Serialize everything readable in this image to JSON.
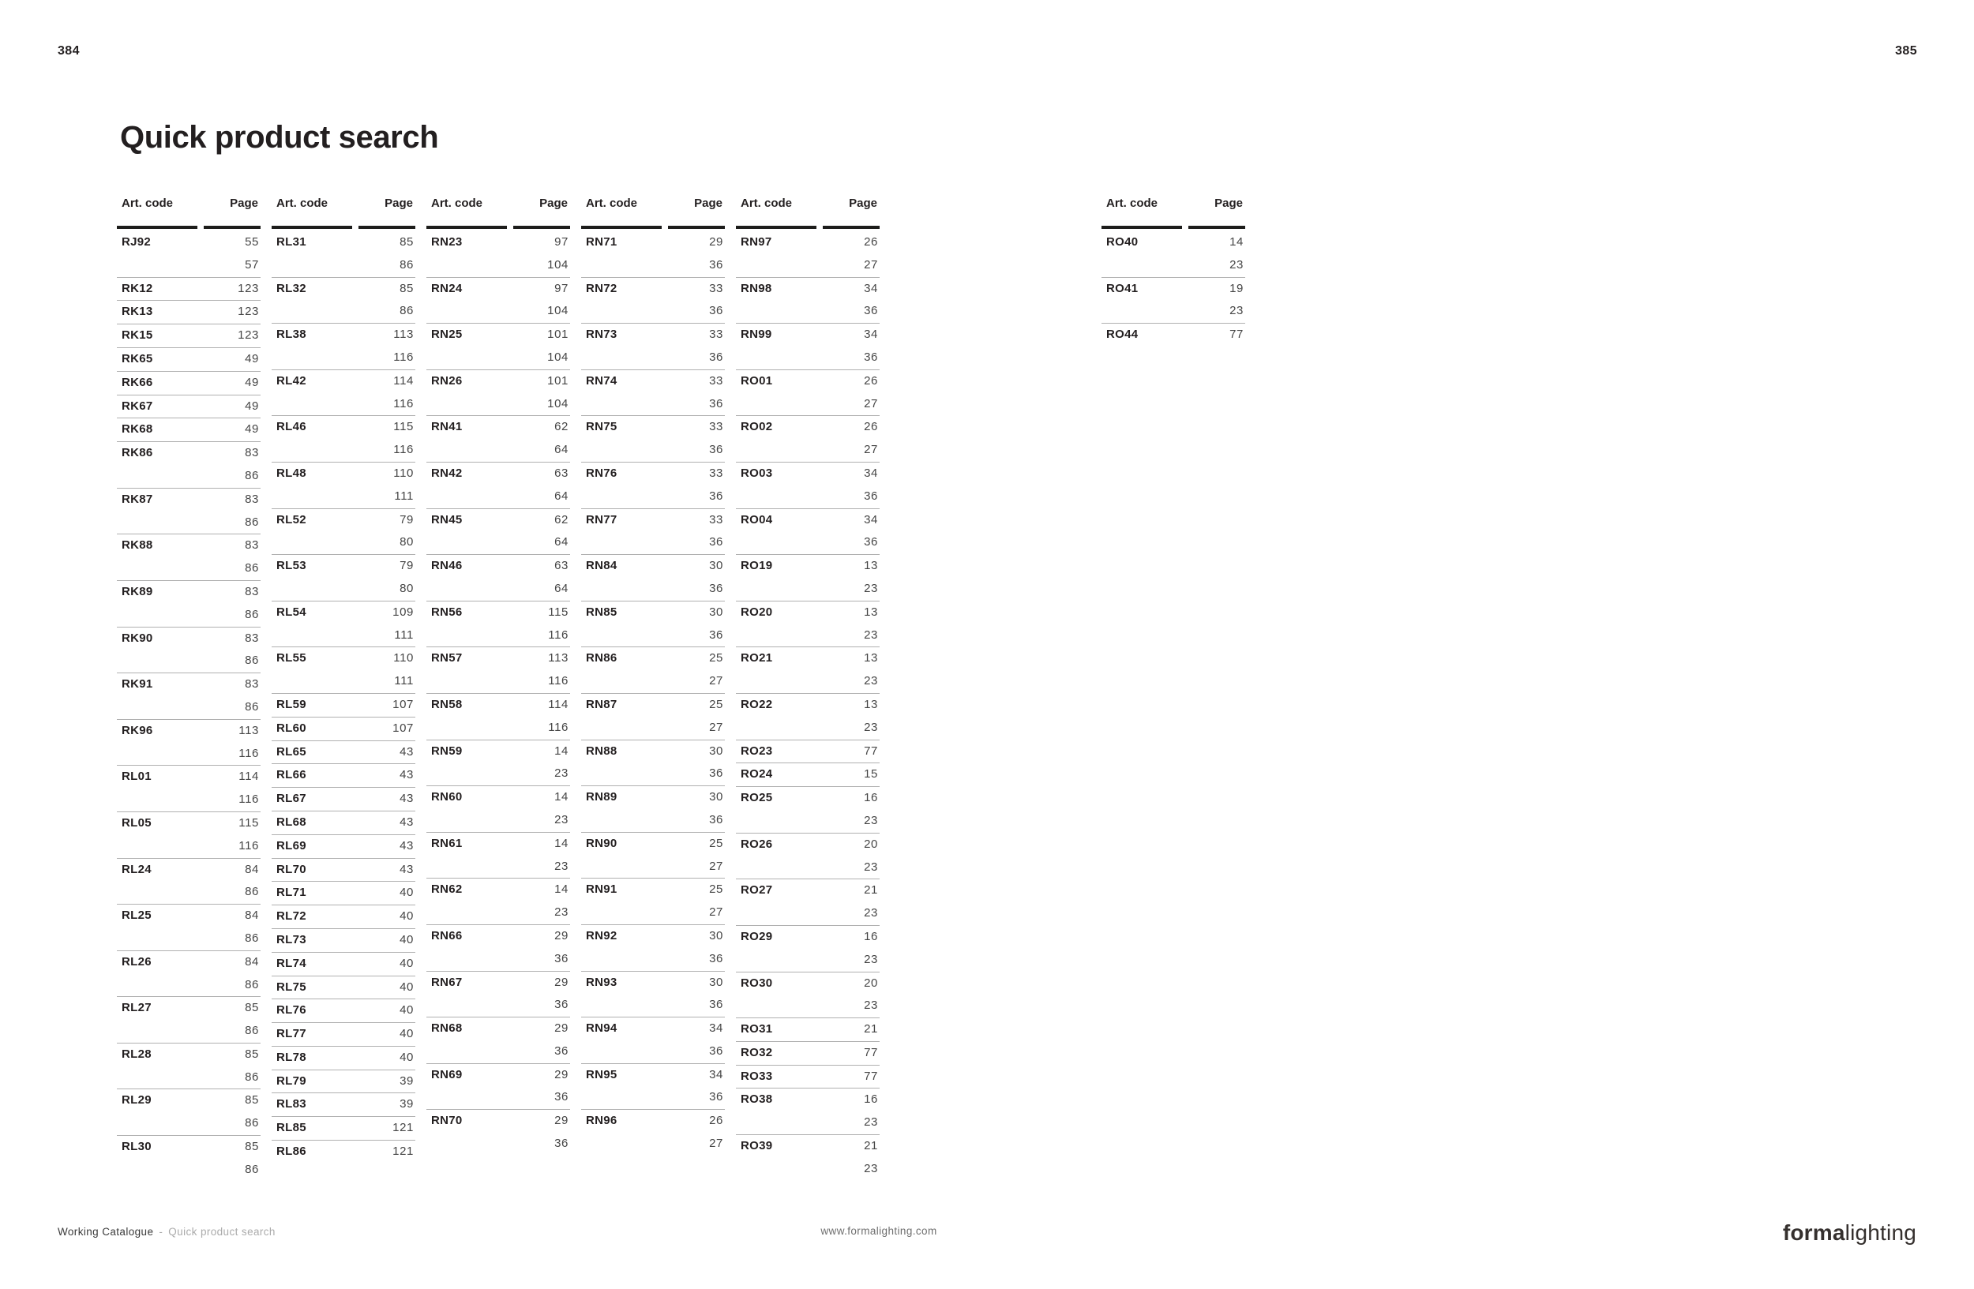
{
  "page": {
    "left_folio": "384",
    "right_folio": "385",
    "title": "Quick product search"
  },
  "table": {
    "col_header_code": "Art. code",
    "col_header_page": "Page",
    "columns": [
      {
        "entries": [
          {
            "code": "RJ92",
            "pages": [
              "55",
              "57"
            ]
          },
          {
            "code": "RK12",
            "pages": [
              "123"
            ]
          },
          {
            "code": "RK13",
            "pages": [
              "123"
            ]
          },
          {
            "code": "RK15",
            "pages": [
              "123"
            ]
          },
          {
            "code": "RK65",
            "pages": [
              "49"
            ]
          },
          {
            "code": "RK66",
            "pages": [
              "49"
            ]
          },
          {
            "code": "RK67",
            "pages": [
              "49"
            ]
          },
          {
            "code": "RK68",
            "pages": [
              "49"
            ]
          },
          {
            "code": "RK86",
            "pages": [
              "83",
              "86"
            ]
          },
          {
            "code": "RK87",
            "pages": [
              "83",
              "86"
            ]
          },
          {
            "code": "RK88",
            "pages": [
              "83",
              "86"
            ]
          },
          {
            "code": "RK89",
            "pages": [
              "83",
              "86"
            ]
          },
          {
            "code": "RK90",
            "pages": [
              "83",
              "86"
            ]
          },
          {
            "code": "RK91",
            "pages": [
              "83",
              "86"
            ]
          },
          {
            "code": "RK96",
            "pages": [
              "113",
              "116"
            ]
          },
          {
            "code": "RL01",
            "pages": [
              "114",
              "116"
            ]
          },
          {
            "code": "RL05",
            "pages": [
              "115",
              "116"
            ]
          },
          {
            "code": "RL24",
            "pages": [
              "84",
              "86"
            ]
          },
          {
            "code": "RL25",
            "pages": [
              "84",
              "86"
            ]
          },
          {
            "code": "RL26",
            "pages": [
              "84",
              "86"
            ]
          },
          {
            "code": "RL27",
            "pages": [
              "85",
              "86"
            ]
          },
          {
            "code": "RL28",
            "pages": [
              "85",
              "86"
            ]
          },
          {
            "code": "RL29",
            "pages": [
              "85",
              "86"
            ]
          },
          {
            "code": "RL30",
            "pages": [
              "85",
              "86"
            ]
          }
        ]
      },
      {
        "entries": [
          {
            "code": "RL31",
            "pages": [
              "85",
              "86"
            ]
          },
          {
            "code": "RL32",
            "pages": [
              "85",
              "86"
            ]
          },
          {
            "code": "RL38",
            "pages": [
              "113",
              "116"
            ]
          },
          {
            "code": "RL42",
            "pages": [
              "114",
              "116"
            ]
          },
          {
            "code": "RL46",
            "pages": [
              "115",
              "116"
            ]
          },
          {
            "code": "RL48",
            "pages": [
              "110",
              "111"
            ]
          },
          {
            "code": "RL52",
            "pages": [
              "79",
              "80"
            ]
          },
          {
            "code": "RL53",
            "pages": [
              "79",
              "80"
            ]
          },
          {
            "code": "RL54",
            "pages": [
              "109",
              "111"
            ]
          },
          {
            "code": "RL55",
            "pages": [
              "110",
              "111"
            ]
          },
          {
            "code": "RL59",
            "pages": [
              "107"
            ]
          },
          {
            "code": "RL60",
            "pages": [
              "107"
            ]
          },
          {
            "code": "RL65",
            "pages": [
              "43"
            ]
          },
          {
            "code": "RL66",
            "pages": [
              "43"
            ]
          },
          {
            "code": "RL67",
            "pages": [
              "43"
            ]
          },
          {
            "code": "RL68",
            "pages": [
              "43"
            ]
          },
          {
            "code": "RL69",
            "pages": [
              "43"
            ]
          },
          {
            "code": "RL70",
            "pages": [
              "43"
            ]
          },
          {
            "code": "RL71",
            "pages": [
              "40"
            ]
          },
          {
            "code": "RL72",
            "pages": [
              "40"
            ]
          },
          {
            "code": "RL73",
            "pages": [
              "40"
            ]
          },
          {
            "code": "RL74",
            "pages": [
              "40"
            ]
          },
          {
            "code": "RL75",
            "pages": [
              "40"
            ]
          },
          {
            "code": "RL76",
            "pages": [
              "40"
            ]
          },
          {
            "code": "RL77",
            "pages": [
              "40"
            ]
          },
          {
            "code": "RL78",
            "pages": [
              "40"
            ]
          },
          {
            "code": "RL79",
            "pages": [
              "39"
            ]
          },
          {
            "code": "RL83",
            "pages": [
              "39"
            ]
          },
          {
            "code": "RL85",
            "pages": [
              "121"
            ]
          },
          {
            "code": "RL86",
            "pages": [
              "121"
            ]
          }
        ]
      },
      {
        "entries": [
          {
            "code": "RN23",
            "pages": [
              "97",
              "104"
            ]
          },
          {
            "code": "RN24",
            "pages": [
              "97",
              "104"
            ]
          },
          {
            "code": "RN25",
            "pages": [
              "101",
              "104"
            ]
          },
          {
            "code": "RN26",
            "pages": [
              "101",
              "104"
            ]
          },
          {
            "code": "RN41",
            "pages": [
              "62",
              "64"
            ]
          },
          {
            "code": "RN42",
            "pages": [
              "63",
              "64"
            ]
          },
          {
            "code": "RN45",
            "pages": [
              "62",
              "64"
            ]
          },
          {
            "code": "RN46",
            "pages": [
              "63",
              "64"
            ]
          },
          {
            "code": "RN56",
            "pages": [
              "115",
              "116"
            ]
          },
          {
            "code": "RN57",
            "pages": [
              "113",
              "116"
            ]
          },
          {
            "code": "RN58",
            "pages": [
              "114",
              "116"
            ]
          },
          {
            "code": "RN59",
            "pages": [
              "14",
              "23"
            ]
          },
          {
            "code": "RN60",
            "pages": [
              "14",
              "23"
            ]
          },
          {
            "code": "RN61",
            "pages": [
              "14",
              "23"
            ]
          },
          {
            "code": "RN62",
            "pages": [
              "14",
              "23"
            ]
          },
          {
            "code": "RN66",
            "pages": [
              "29",
              "36"
            ]
          },
          {
            "code": "RN67",
            "pages": [
              "29",
              "36"
            ]
          },
          {
            "code": "RN68",
            "pages": [
              "29",
              "36"
            ]
          },
          {
            "code": "RN69",
            "pages": [
              "29",
              "36"
            ]
          },
          {
            "code": "RN70",
            "pages": [
              "29",
              "36"
            ]
          }
        ]
      },
      {
        "entries": [
          {
            "code": "RN71",
            "pages": [
              "29",
              "36"
            ]
          },
          {
            "code": "RN72",
            "pages": [
              "33",
              "36"
            ]
          },
          {
            "code": "RN73",
            "pages": [
              "33",
              "36"
            ]
          },
          {
            "code": "RN74",
            "pages": [
              "33",
              "36"
            ]
          },
          {
            "code": "RN75",
            "pages": [
              "33",
              "36"
            ]
          },
          {
            "code": "RN76",
            "pages": [
              "33",
              "36"
            ]
          },
          {
            "code": "RN77",
            "pages": [
              "33",
              "36"
            ]
          },
          {
            "code": "RN84",
            "pages": [
              "30",
              "36"
            ]
          },
          {
            "code": "RN85",
            "pages": [
              "30",
              "36"
            ]
          },
          {
            "code": "RN86",
            "pages": [
              "25",
              "27"
            ]
          },
          {
            "code": "RN87",
            "pages": [
              "25",
              "27"
            ]
          },
          {
            "code": "RN88",
            "pages": [
              "30",
              "36"
            ]
          },
          {
            "code": "RN89",
            "pages": [
              "30",
              "36"
            ]
          },
          {
            "code": "RN90",
            "pages": [
              "25",
              "27"
            ]
          },
          {
            "code": "RN91",
            "pages": [
              "25",
              "27"
            ]
          },
          {
            "code": "RN92",
            "pages": [
              "30",
              "36"
            ]
          },
          {
            "code": "RN93",
            "pages": [
              "30",
              "36"
            ]
          },
          {
            "code": "RN94",
            "pages": [
              "34",
              "36"
            ]
          },
          {
            "code": "RN95",
            "pages": [
              "34",
              "36"
            ]
          },
          {
            "code": "RN96",
            "pages": [
              "26",
              "27"
            ]
          }
        ]
      },
      {
        "entries": [
          {
            "code": "RN97",
            "pages": [
              "26",
              "27"
            ]
          },
          {
            "code": "RN98",
            "pages": [
              "34",
              "36"
            ]
          },
          {
            "code": "RN99",
            "pages": [
              "34",
              "36"
            ]
          },
          {
            "code": "RO01",
            "pages": [
              "26",
              "27"
            ]
          },
          {
            "code": "RO02",
            "pages": [
              "26",
              "27"
            ]
          },
          {
            "code": "RO03",
            "pages": [
              "34",
              "36"
            ]
          },
          {
            "code": "RO04",
            "pages": [
              "34",
              "36"
            ]
          },
          {
            "code": "RO19",
            "pages": [
              "13",
              "23"
            ]
          },
          {
            "code": "RO20",
            "pages": [
              "13",
              "23"
            ]
          },
          {
            "code": "RO21",
            "pages": [
              "13",
              "23"
            ]
          },
          {
            "code": "RO22",
            "pages": [
              "13",
              "23"
            ]
          },
          {
            "code": "RO23",
            "pages": [
              "77"
            ]
          },
          {
            "code": "RO24",
            "pages": [
              "15"
            ]
          },
          {
            "code": "RO25",
            "pages": [
              "16",
              "23"
            ]
          },
          {
            "code": "RO26",
            "pages": [
              "20",
              "23"
            ]
          },
          {
            "code": "RO27",
            "pages": [
              "21",
              "23"
            ]
          },
          {
            "code": "RO29",
            "pages": [
              "16",
              "23"
            ]
          },
          {
            "code": "RO30",
            "pages": [
              "20",
              "23"
            ]
          },
          {
            "code": "RO31",
            "pages": [
              "21"
            ]
          },
          {
            "code": "RO32",
            "pages": [
              "77"
            ]
          },
          {
            "code": "RO33",
            "pages": [
              "77"
            ]
          },
          {
            "code": "RO38",
            "pages": [
              "16",
              "23"
            ]
          },
          {
            "code": "RO39",
            "pages": [
              "21",
              "23"
            ]
          }
        ]
      },
      {
        "entries": [
          {
            "code": "RO40",
            "pages": [
              "14",
              "23"
            ]
          },
          {
            "code": "RO41",
            "pages": [
              "19",
              "23"
            ]
          },
          {
            "code": "RO44",
            "pages": [
              "77"
            ]
          }
        ]
      }
    ]
  },
  "footer": {
    "breadcrumb_section": "Working Catalogue",
    "breadcrumb_separator": "-",
    "breadcrumb_current": "Quick product search",
    "url": "www.formalighting.com",
    "brand_bold": "forma",
    "brand_light": "lighting"
  },
  "colors": {
    "text_primary": "#231f20",
    "text_page_numbers": "#454545",
    "rule_heavy": "#1d1d1b",
    "rule_light": "#b0b0b0",
    "footer_muted": "#ababab"
  }
}
